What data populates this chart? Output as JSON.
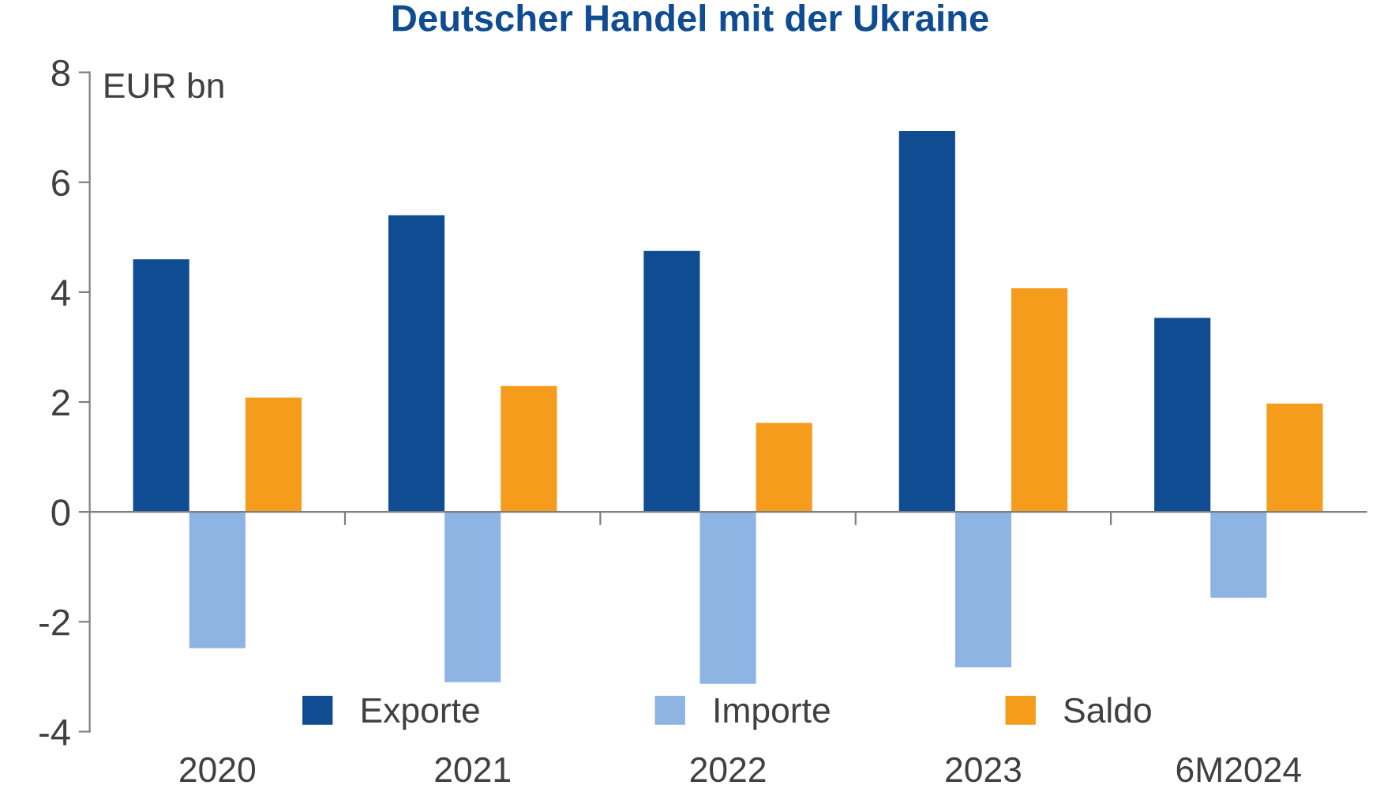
{
  "chart_data": {
    "type": "bar",
    "title": "Deutscher Handel mit der Ukraine",
    "ylabel": "EUR bn",
    "categories": [
      "2020",
      "2021",
      "2022",
      "2023",
      "6M2024"
    ],
    "series": [
      {
        "name": "Exporte",
        "color": "#0f4c92",
        "values": [
          4.6,
          5.4,
          4.75,
          6.93,
          3.53
        ]
      },
      {
        "name": "Importe",
        "color": "#8db4e2",
        "values": [
          -2.48,
          -3.1,
          -3.13,
          -2.83,
          -1.56
        ]
      },
      {
        "name": "Saldo",
        "color": "#f59c1c",
        "values": [
          2.08,
          2.29,
          1.62,
          4.07,
          1.97
        ]
      }
    ],
    "ylim": [
      -4,
      8
    ],
    "yticks": [
      -4,
      -2,
      0,
      2,
      4,
      6,
      8
    ],
    "legend": "bottom"
  }
}
